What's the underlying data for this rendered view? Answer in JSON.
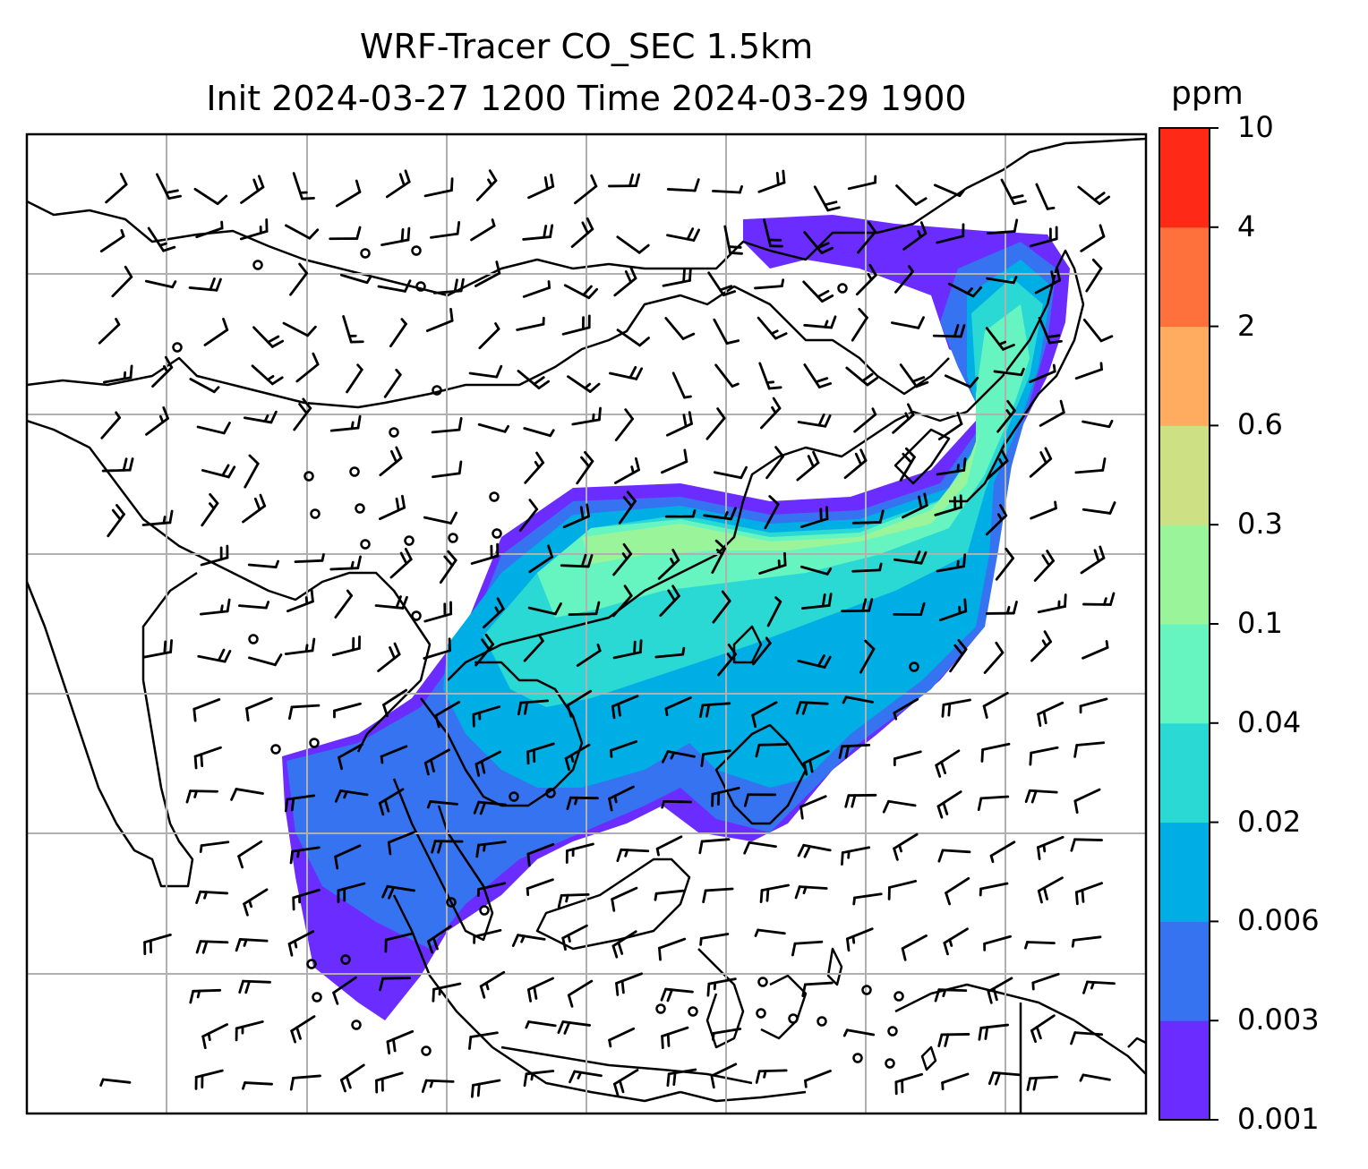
{
  "title": {
    "line1": "WRF-Tracer CO_SEC 1.5km",
    "line2": "Init 2024-03-27 1200 Time 2024-03-29 1900"
  },
  "colorbar": {
    "unit": "ppm",
    "levels": [
      "0.001",
      "0.003",
      "0.006",
      "0.02",
      "0.04",
      "0.1",
      "0.3",
      "0.6",
      "2",
      "4",
      "10"
    ],
    "colors": [
      "#6a2cff",
      "#3673f0",
      "#00aee6",
      "#2ad8d4",
      "#66f5c0",
      "#9af59a",
      "#cde083",
      "#ffac60",
      "#ff713c",
      "#ff2918"
    ]
  },
  "map": {
    "gridlines": true,
    "field_colors": {
      "violet": "#6a2cff",
      "blue": "#3673f0",
      "cyan": "#00aee6",
      "teal": "#2ad8d4",
      "aqua": "#66f5c0",
      "lightgreen": "#9af59a"
    },
    "wind_symbol_color": "#000000",
    "calm_marker": "calm-circle-icon",
    "barb_marker": "wind-barb-icon"
  }
}
